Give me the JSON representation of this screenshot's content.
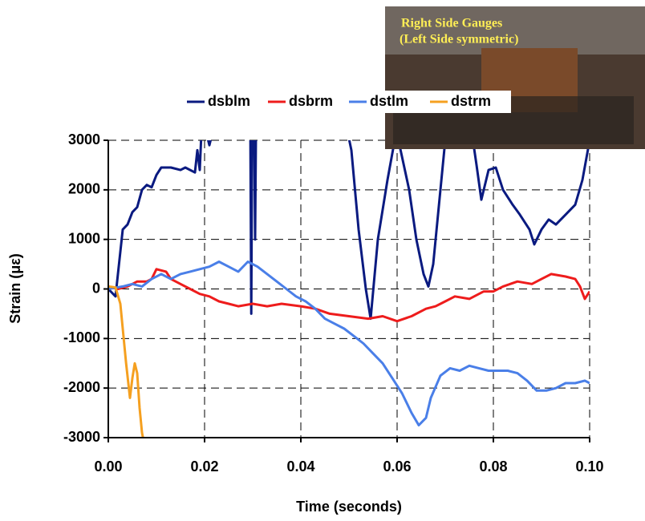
{
  "chart_data": {
    "type": "line",
    "xlabel": "Time (seconds)",
    "ylabel": "Strain (με)",
    "annotations": [
      "Right Side Gauges",
      "(Left Side symmetric)"
    ],
    "xlim": [
      0,
      0.1
    ],
    "ylim": [
      -3000,
      3000
    ],
    "xticks": [
      {
        "value": 0,
        "label": "0.00"
      },
      {
        "value": 0.02,
        "label": "0.02"
      },
      {
        "value": 0.04,
        "label": "0.04"
      },
      {
        "value": 0.06,
        "label": "0.06"
      },
      {
        "value": 0.08,
        "label": "0.08"
      },
      {
        "value": 0.1,
        "label": "0.10"
      }
    ],
    "yticks": [
      -3000,
      -2000,
      -1000,
      0,
      1000,
      2000,
      3000
    ],
    "grid": true,
    "legend": "top",
    "series": [
      {
        "name": "dsblm",
        "color": "#0a1a80",
        "x": [
          0,
          0.0015,
          0.002,
          0.003,
          0.004,
          0.005,
          0.006,
          0.007,
          0.008,
          0.009,
          0.01,
          0.011,
          0.013,
          0.015,
          0.016,
          0.018,
          0.0185,
          0.019,
          0.0195,
          0.02,
          0.021,
          0.022,
          0.0295,
          0.0297,
          0.0299,
          0.0303,
          0.0305,
          0.0307,
          0.049,
          0.0505,
          0.052,
          0.0535,
          0.0545,
          0.056,
          0.058,
          0.0595,
          0.0605,
          0.0625,
          0.064,
          0.0655,
          0.0665,
          0.0675,
          0.069,
          0.0705,
          0.075,
          0.0765,
          0.0775,
          0.079,
          0.0805,
          0.082,
          0.084,
          0.0855,
          0.0875,
          0.0885,
          0.09,
          0.0915,
          0.093,
          0.095,
          0.097,
          0.0985,
          0.1
        ],
        "values": [
          0,
          -150,
          300,
          1200,
          1300,
          1550,
          1650,
          2000,
          2100,
          2050,
          2300,
          2450,
          2450,
          2400,
          2450,
          2350,
          2800,
          2400,
          3500,
          3300,
          2900,
          3300,
          3500,
          -500,
          3500,
          3500,
          1000,
          3500,
          3500,
          2800,
          1200,
          0,
          -600,
          1000,
          2200,
          3000,
          2900,
          2000,
          1000,
          300,
          50,
          500,
          2000,
          3500,
          3500,
          2500,
          1800,
          2400,
          2450,
          2000,
          1700,
          1500,
          1200,
          900,
          1200,
          1400,
          1300,
          1500,
          1700,
          2200,
          3000
        ]
      },
      {
        "name": "dsbrm",
        "color": "#ee1c1c",
        "x": [
          0,
          0.002,
          0.004,
          0.006,
          0.008,
          0.009,
          0.01,
          0.012,
          0.013,
          0.015,
          0.017,
          0.019,
          0.021,
          0.023,
          0.025,
          0.027,
          0.03,
          0.033,
          0.036,
          0.04,
          0.043,
          0.046,
          0.05,
          0.054,
          0.057,
          0.06,
          0.063,
          0.066,
          0.068,
          0.07,
          0.072,
          0.075,
          0.078,
          0.08,
          0.082,
          0.085,
          0.088,
          0.09,
          0.092,
          0.095,
          0.097,
          0.098,
          0.099,
          0.1
        ],
        "values": [
          50,
          0,
          50,
          150,
          150,
          200,
          400,
          350,
          200,
          100,
          0,
          -100,
          -150,
          -250,
          -300,
          -350,
          -300,
          -350,
          -300,
          -350,
          -400,
          -500,
          -550,
          -600,
          -550,
          -650,
          -550,
          -400,
          -350,
          -250,
          -150,
          -200,
          -50,
          -50,
          50,
          150,
          100,
          200,
          300,
          250,
          200,
          50,
          -200,
          -50
        ]
      },
      {
        "name": "dstlm",
        "color": "#4a7fe8",
        "x": [
          0,
          0.003,
          0.005,
          0.007,
          0.009,
          0.011,
          0.013,
          0.015,
          0.017,
          0.019,
          0.021,
          0.023,
          0.025,
          0.027,
          0.029,
          0.031,
          0.033,
          0.035,
          0.037,
          0.039,
          0.041,
          0.043,
          0.045,
          0.047,
          0.049,
          0.051,
          0.053,
          0.055,
          0.057,
          0.059,
          0.061,
          0.063,
          0.0645,
          0.066,
          0.067,
          0.069,
          0.071,
          0.073,
          0.075,
          0.077,
          0.079,
          0.081,
          0.083,
          0.085,
          0.087,
          0.089,
          0.091,
          0.093,
          0.095,
          0.097,
          0.099,
          0.1
        ],
        "values": [
          0,
          50,
          100,
          50,
          200,
          300,
          200,
          300,
          350,
          400,
          450,
          550,
          450,
          350,
          550,
          450,
          300,
          150,
          0,
          -150,
          -250,
          -400,
          -600,
          -700,
          -800,
          -950,
          -1100,
          -1300,
          -1500,
          -1800,
          -2100,
          -2500,
          -2750,
          -2600,
          -2200,
          -1750,
          -1600,
          -1650,
          -1550,
          -1600,
          -1650,
          -1650,
          -1650,
          -1700,
          -1850,
          -2050,
          -2050,
          -2000,
          -1900,
          -1900,
          -1850,
          -1900
        ]
      },
      {
        "name": "dstrm",
        "color": "#f5a020",
        "x": [
          0,
          0.0015,
          0.0025,
          0.003,
          0.0037,
          0.0045,
          0.005,
          0.0055,
          0.006,
          0.0065,
          0.007,
          0.0072
        ],
        "values": [
          50,
          30,
          -300,
          -800,
          -1500,
          -2200,
          -1800,
          -1500,
          -1700,
          -2400,
          -2900,
          -3000
        ]
      }
    ]
  }
}
